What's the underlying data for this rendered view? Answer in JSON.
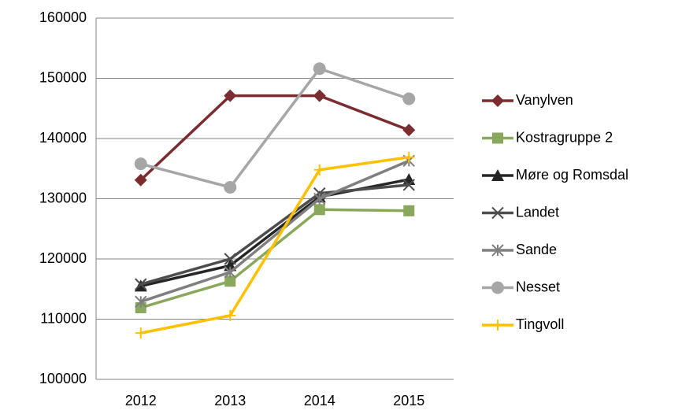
{
  "chart_data": {
    "type": "line",
    "categories": [
      "2012",
      "2013",
      "2014",
      "2015"
    ],
    "series": [
      {
        "name": "Vanylven",
        "color": "#7b2c2f",
        "marker": "diamond",
        "values": [
          133100,
          147100,
          147100,
          141400
        ]
      },
      {
        "name": "Kostragruppe 2",
        "color": "#8aa85c",
        "marker": "square",
        "values": [
          111900,
          116300,
          128200,
          128000
        ]
      },
      {
        "name": "Møre og Romsdal",
        "color": "#262626",
        "marker": "triangle",
        "values": [
          115500,
          118900,
          130300,
          133200
        ]
      },
      {
        "name": "Landet",
        "color": "#4d4d4d",
        "marker": "x",
        "values": [
          115800,
          120000,
          130900,
          132300
        ]
      },
      {
        "name": "Sande",
        "color": "#7f7f7f",
        "marker": "asterisk",
        "values": [
          112900,
          117800,
          130000,
          136300
        ]
      },
      {
        "name": "Nesset",
        "color": "#a6a6a6",
        "marker": "circle",
        "values": [
          135800,
          131900,
          151600,
          146600
        ]
      },
      {
        "name": "Tingvoll",
        "color": "#ffc000",
        "marker": "plus",
        "values": [
          107700,
          110600,
          134800,
          136900
        ]
      }
    ],
    "ylim": [
      100000,
      160000
    ],
    "yticks": [
      100000,
      110000,
      120000,
      130000,
      140000,
      150000,
      160000
    ],
    "grid": true,
    "legend": "right"
  }
}
